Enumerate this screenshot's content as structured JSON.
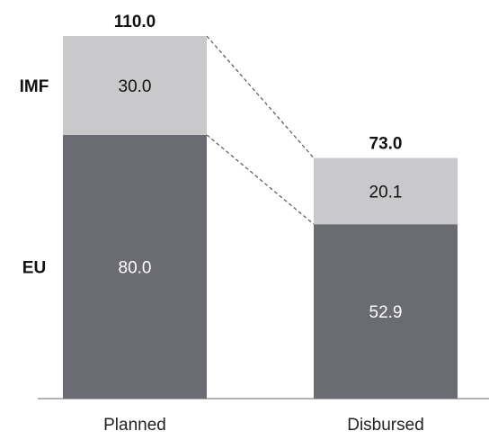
{
  "chart_data": {
    "type": "bar",
    "stacked": true,
    "categories": [
      "Planned",
      "Disbursed"
    ],
    "series": [
      {
        "name": "EU",
        "values": [
          80.0,
          52.9
        ],
        "color": "#6b6c73",
        "label_color": "#ffffff"
      },
      {
        "name": "IMF",
        "values": [
          30.0,
          20.1
        ],
        "color": "#c9c9cb",
        "label_color": "#111111"
      }
    ],
    "totals": [
      110.0,
      73.0
    ],
    "value_labels": [
      [
        "80.0",
        "52.9"
      ],
      [
        "30.0",
        "20.1"
      ]
    ],
    "total_labels": [
      "110.0",
      "73.0"
    ],
    "title": "",
    "xlabel": "",
    "ylabel": "",
    "ylim": [
      0,
      110
    ],
    "grid": false,
    "legend_position": "left",
    "connector_lines": "dashed"
  }
}
